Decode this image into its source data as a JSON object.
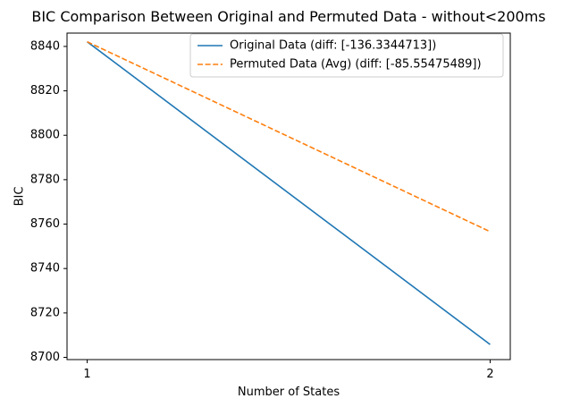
{
  "chart_data": {
    "type": "line",
    "title": "BIC Comparison Between Original and Permuted Data - without<200ms",
    "xlabel": "Number of States",
    "ylabel": "BIC",
    "x": [
      1,
      2
    ],
    "xticks": [
      1,
      2
    ],
    "xlim": [
      0.95,
      2.05
    ],
    "ylim": [
      8699,
      8846
    ],
    "yticks": [
      8700,
      8720,
      8740,
      8760,
      8780,
      8800,
      8820,
      8840
    ],
    "grid": false,
    "legend_position": "top-right",
    "series": [
      {
        "name": "Original Data (diff: [-136.3344713])",
        "values": [
          8842.1,
          8705.8
        ],
        "color": "#1f77b4",
        "style": "solid"
      },
      {
        "name": "Permuted Data (Avg) (diff: [-85.55475489])",
        "values": [
          8842.1,
          8756.6
        ],
        "color": "#ff7f0e",
        "style": "dashed"
      }
    ]
  }
}
